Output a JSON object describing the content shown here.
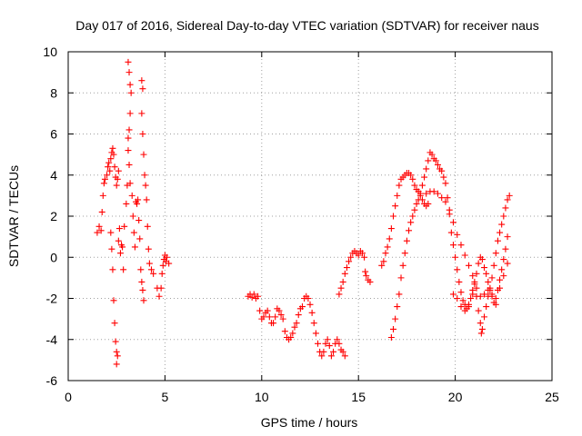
{
  "chart_data": {
    "type": "scatter",
    "title": "Day 017 of 2016, Sidereal Day-to-day VTEC variation (SDTVAR) for receiver naus",
    "xlabel": "GPS time / hours",
    "ylabel": "SDTVAR / TECUs",
    "xlim": [
      0,
      25
    ],
    "ylim": [
      -6,
      10
    ],
    "xticks": [
      0,
      5,
      10,
      15,
      20,
      25
    ],
    "yticks": [
      -6,
      -4,
      -2,
      0,
      2,
      4,
      6,
      8,
      10
    ],
    "xtick_labels": [
      "0",
      "5",
      "10",
      "15",
      "20",
      "25"
    ],
    "ytick_labels": [
      "-6",
      "-4",
      "-2",
      "0",
      "2",
      "4",
      "6",
      "8",
      "10"
    ],
    "grid": true,
    "marker": "+",
    "color": "#ff0000",
    "series": [
      {
        "name": "SDTVAR",
        "points": [
          [
            1.5,
            1.2
          ],
          [
            1.6,
            1.5
          ],
          [
            1.7,
            1.3
          ],
          [
            1.75,
            2.2
          ],
          [
            1.8,
            3.0
          ],
          [
            1.85,
            3.6
          ],
          [
            1.9,
            3.8
          ],
          [
            2.0,
            4.0
          ],
          [
            2.05,
            4.4
          ],
          [
            2.1,
            4.6
          ],
          [
            2.15,
            4.2
          ],
          [
            2.2,
            4.8
          ],
          [
            2.25,
            5.1
          ],
          [
            2.3,
            5.3
          ],
          [
            2.35,
            5.0
          ],
          [
            2.4,
            4.4
          ],
          [
            2.45,
            3.9
          ],
          [
            2.5,
            3.5
          ],
          [
            2.55,
            3.8
          ],
          [
            2.6,
            4.2
          ],
          [
            2.2,
            1.2
          ],
          [
            2.25,
            0.4
          ],
          [
            2.3,
            -0.6
          ],
          [
            2.35,
            -2.1
          ],
          [
            2.4,
            -3.2
          ],
          [
            2.45,
            -4.1
          ],
          [
            2.5,
            -4.6
          ],
          [
            2.5,
            -5.2
          ],
          [
            2.55,
            -4.8
          ],
          [
            2.6,
            0.8
          ],
          [
            2.65,
            1.4
          ],
          [
            2.7,
            0.2
          ],
          [
            2.75,
            0.6
          ],
          [
            2.8,
            0.5
          ],
          [
            2.85,
            -0.6
          ],
          [
            2.9,
            1.5
          ],
          [
            3.0,
            2.6
          ],
          [
            3.05,
            3.5
          ],
          [
            3.1,
            5.2
          ],
          [
            3.1,
            9.5
          ],
          [
            3.15,
            9.0
          ],
          [
            3.2,
            8.4
          ],
          [
            3.25,
            8.0
          ],
          [
            3.2,
            7.0
          ],
          [
            3.15,
            6.2
          ],
          [
            3.1,
            5.8
          ],
          [
            3.15,
            4.5
          ],
          [
            3.2,
            3.6
          ],
          [
            3.3,
            3.0
          ],
          [
            3.35,
            2.0
          ],
          [
            3.4,
            1.2
          ],
          [
            3.45,
            0.5
          ],
          [
            3.5,
            2.7
          ],
          [
            3.55,
            2.6
          ],
          [
            3.6,
            2.8
          ],
          [
            3.65,
            1.8
          ],
          [
            3.7,
            0.9
          ],
          [
            3.75,
            -0.6
          ],
          [
            3.8,
            -1.2
          ],
          [
            3.85,
            -1.6
          ],
          [
            3.9,
            -2.1
          ],
          [
            3.8,
            8.6
          ],
          [
            3.85,
            8.2
          ],
          [
            3.8,
            7.0
          ],
          [
            3.85,
            6.0
          ],
          [
            3.9,
            5.0
          ],
          [
            3.95,
            4.0
          ],
          [
            4.0,
            3.5
          ],
          [
            4.05,
            2.8
          ],
          [
            4.1,
            1.5
          ],
          [
            4.15,
            0.4
          ],
          [
            4.2,
            -0.3
          ],
          [
            4.3,
            -0.6
          ],
          [
            4.4,
            -0.8
          ],
          [
            4.6,
            -1.5
          ],
          [
            4.7,
            -1.9
          ],
          [
            4.8,
            -1.5
          ],
          [
            4.85,
            -0.8
          ],
          [
            4.9,
            -0.4
          ],
          [
            4.95,
            -0.1
          ],
          [
            5.0,
            0.1
          ],
          [
            5.05,
            -0.2
          ],
          [
            5.1,
            0.0
          ],
          [
            5.2,
            -0.3
          ],
          [
            9.3,
            -1.9
          ],
          [
            9.4,
            -1.8
          ],
          [
            9.5,
            -1.95
          ],
          [
            9.6,
            -1.8
          ],
          [
            9.7,
            -2.0
          ],
          [
            9.8,
            -1.9
          ],
          [
            9.9,
            -2.6
          ],
          [
            10.0,
            -3.0
          ],
          [
            10.1,
            -2.9
          ],
          [
            10.2,
            -2.7
          ],
          [
            10.3,
            -2.6
          ],
          [
            10.4,
            -2.9
          ],
          [
            10.5,
            -3.2
          ],
          [
            10.6,
            -3.2
          ],
          [
            10.7,
            -2.9
          ],
          [
            10.8,
            -2.5
          ],
          [
            10.9,
            -2.6
          ],
          [
            11.0,
            -2.8
          ],
          [
            11.1,
            -3.0
          ],
          [
            11.2,
            -3.6
          ],
          [
            11.3,
            -3.9
          ],
          [
            11.4,
            -4.0
          ],
          [
            11.5,
            -3.9
          ],
          [
            11.6,
            -3.7
          ],
          [
            11.7,
            -3.4
          ],
          [
            11.8,
            -3.2
          ],
          [
            11.9,
            -2.8
          ],
          [
            12.0,
            -2.5
          ],
          [
            12.1,
            -2.4
          ],
          [
            12.2,
            -2.0
          ],
          [
            12.3,
            -1.9
          ],
          [
            12.4,
            -2.0
          ],
          [
            12.5,
            -2.3
          ],
          [
            12.6,
            -2.7
          ],
          [
            12.7,
            -3.2
          ],
          [
            12.8,
            -3.7
          ],
          [
            12.9,
            -4.2
          ],
          [
            13.0,
            -4.6
          ],
          [
            13.1,
            -4.8
          ],
          [
            13.2,
            -4.6
          ],
          [
            13.3,
            -4.2
          ],
          [
            13.4,
            -4.0
          ],
          [
            13.5,
            -4.3
          ],
          [
            13.6,
            -4.8
          ],
          [
            13.7,
            -4.6
          ],
          [
            13.8,
            -4.2
          ],
          [
            13.9,
            -4.0
          ],
          [
            14.0,
            -4.2
          ],
          [
            14.1,
            -4.5
          ],
          [
            14.2,
            -4.6
          ],
          [
            14.3,
            -4.8
          ],
          [
            14.0,
            -1.8
          ],
          [
            14.1,
            -1.5
          ],
          [
            14.2,
            -1.2
          ],
          [
            14.3,
            -0.8
          ],
          [
            14.4,
            -0.5
          ],
          [
            14.5,
            -0.2
          ],
          [
            14.6,
            0.0
          ],
          [
            14.7,
            0.2
          ],
          [
            14.8,
            0.3
          ],
          [
            14.9,
            0.2
          ],
          [
            15.0,
            0.1
          ],
          [
            15.1,
            0.3
          ],
          [
            15.2,
            0.2
          ],
          [
            15.3,
            0.0
          ],
          [
            15.35,
            -0.7
          ],
          [
            15.4,
            -0.9
          ],
          [
            15.5,
            -1.1
          ],
          [
            15.6,
            -1.2
          ],
          [
            16.2,
            -0.4
          ],
          [
            16.3,
            -0.2
          ],
          [
            16.4,
            0.2
          ],
          [
            16.5,
            0.5
          ],
          [
            16.6,
            0.9
          ],
          [
            16.7,
            1.4
          ],
          [
            16.8,
            2.0
          ],
          [
            16.9,
            2.5
          ],
          [
            17.0,
            3.0
          ],
          [
            17.1,
            3.5
          ],
          [
            17.2,
            3.8
          ],
          [
            17.3,
            3.9
          ],
          [
            17.4,
            4.0
          ],
          [
            17.5,
            4.1
          ],
          [
            17.6,
            4.1
          ],
          [
            17.7,
            4.0
          ],
          [
            17.8,
            3.8
          ],
          [
            17.9,
            3.5
          ],
          [
            18.0,
            3.3
          ],
          [
            18.1,
            3.2
          ],
          [
            18.2,
            3.0
          ],
          [
            18.3,
            2.8
          ],
          [
            18.4,
            2.6
          ],
          [
            18.5,
            2.5
          ],
          [
            18.6,
            2.6
          ],
          [
            16.7,
            -3.9
          ],
          [
            16.8,
            -3.5
          ],
          [
            16.9,
            -3.0
          ],
          [
            17.0,
            -2.4
          ],
          [
            17.1,
            -1.8
          ],
          [
            17.2,
            -1.0
          ],
          [
            17.3,
            -0.4
          ],
          [
            17.4,
            0.2
          ],
          [
            17.5,
            0.8
          ],
          [
            17.6,
            1.3
          ],
          [
            17.7,
            1.7
          ],
          [
            17.8,
            2.0
          ],
          [
            17.9,
            2.3
          ],
          [
            18.0,
            2.6
          ],
          [
            18.1,
            2.8
          ],
          [
            18.2,
            3.1
          ],
          [
            18.3,
            3.5
          ],
          [
            18.4,
            3.9
          ],
          [
            18.5,
            4.3
          ],
          [
            18.6,
            4.7
          ],
          [
            18.7,
            5.1
          ],
          [
            18.8,
            5.0
          ],
          [
            18.9,
            4.8
          ],
          [
            19.0,
            4.7
          ],
          [
            19.1,
            4.5
          ],
          [
            19.2,
            4.3
          ],
          [
            19.3,
            4.2
          ],
          [
            19.4,
            3.9
          ],
          [
            19.5,
            3.6
          ],
          [
            19.6,
            2.9
          ],
          [
            19.7,
            2.1
          ],
          [
            19.8,
            1.2
          ],
          [
            19.9,
            0.6
          ],
          [
            20.0,
            0.0
          ],
          [
            20.1,
            -0.6
          ],
          [
            20.2,
            -1.2
          ],
          [
            20.3,
            -1.7
          ],
          [
            20.4,
            -2.1
          ],
          [
            20.5,
            -2.3
          ],
          [
            20.6,
            -2.5
          ],
          [
            20.7,
            -2.4
          ],
          [
            20.8,
            -2.0
          ],
          [
            20.9,
            -1.6
          ],
          [
            21.0,
            -1.2
          ],
          [
            21.1,
            -0.8
          ],
          [
            21.2,
            -0.3
          ],
          [
            21.3,
            0.0
          ],
          [
            21.4,
            -0.1
          ],
          [
            21.5,
            -0.5
          ],
          [
            21.6,
            -0.8
          ],
          [
            21.7,
            -1.2
          ],
          [
            21.8,
            -1.6
          ],
          [
            21.9,
            -1.9
          ],
          [
            22.0,
            -2.2
          ],
          [
            22.1,
            -2.0
          ],
          [
            22.2,
            -1.6
          ],
          [
            22.3,
            -1.1
          ],
          [
            22.4,
            -0.6
          ],
          [
            22.5,
            -0.1
          ],
          [
            22.6,
            0.4
          ],
          [
            22.7,
            1.0
          ],
          [
            18.5,
            3.1
          ],
          [
            18.7,
            3.2
          ],
          [
            18.9,
            3.2
          ],
          [
            19.1,
            3.1
          ],
          [
            19.3,
            2.9
          ],
          [
            19.5,
            2.7
          ],
          [
            19.7,
            2.3
          ],
          [
            19.9,
            1.7
          ],
          [
            20.1,
            1.1
          ],
          [
            20.3,
            0.6
          ],
          [
            20.5,
            0.1
          ],
          [
            20.7,
            -0.4
          ],
          [
            20.9,
            -0.9
          ],
          [
            21.0,
            -1.3
          ],
          [
            21.1,
            -1.9
          ],
          [
            21.2,
            -2.6
          ],
          [
            21.3,
            -3.2
          ],
          [
            21.35,
            -3.7
          ],
          [
            21.4,
            -3.5
          ],
          [
            21.5,
            -2.9
          ],
          [
            21.6,
            -2.4
          ],
          [
            21.7,
            -1.9
          ],
          [
            21.8,
            -1.5
          ],
          [
            21.9,
            -1.0
          ],
          [
            22.0,
            -0.4
          ],
          [
            22.1,
            0.2
          ],
          [
            22.2,
            0.8
          ],
          [
            22.3,
            1.2
          ],
          [
            22.4,
            1.6
          ],
          [
            22.5,
            2.0
          ],
          [
            22.6,
            2.4
          ],
          [
            22.7,
            2.8
          ],
          [
            22.8,
            3.0
          ],
          [
            19.9,
            -1.8
          ],
          [
            20.1,
            -2.0
          ],
          [
            20.3,
            -2.4
          ],
          [
            20.5,
            -2.6
          ],
          [
            20.7,
            -2.3
          ],
          [
            20.9,
            -1.8
          ],
          [
            21.1,
            -1.5
          ],
          [
            21.3,
            -1.9
          ],
          [
            21.5,
            -1.8
          ],
          [
            21.7,
            -1.6
          ],
          [
            21.9,
            -1.8
          ],
          [
            22.1,
            -2.3
          ],
          [
            22.3,
            -1.5
          ],
          [
            22.5,
            -0.9
          ],
          [
            22.7,
            -0.3
          ]
        ]
      }
    ]
  }
}
